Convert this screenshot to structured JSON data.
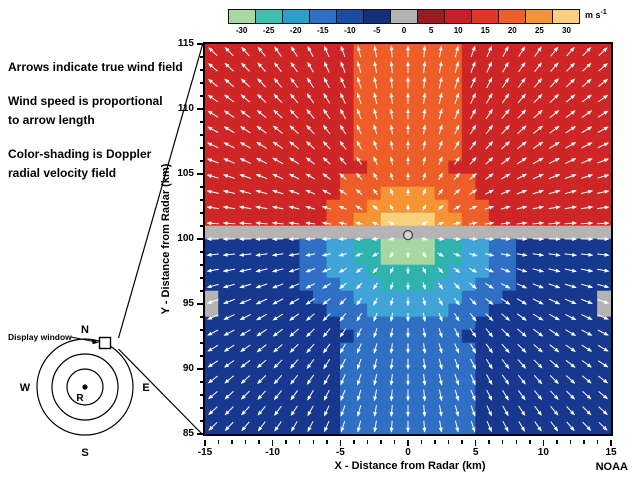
{
  "colorbar": {
    "values": [
      "-30",
      "-25",
      "-20",
      "-15",
      "-10",
      "-5",
      "0",
      "5",
      "10",
      "15",
      "20",
      "25",
      "30"
    ],
    "colors": [
      "#a8d8a2",
      "#3fbfae",
      "#2a9fc9",
      "#2e6fc4",
      "#1c4ba6",
      "#12307e",
      "#b4b4b4",
      "#9c1a20",
      "#c32127",
      "#de3627",
      "#ee5e28",
      "#f49434",
      "#f8d07e"
    ],
    "unit": "m s",
    "unit_exp": "-1"
  },
  "annotations": {
    "arrows": "Arrows indicate true wind field",
    "speed": "Wind speed is proportional\nto arrow length",
    "shading": "Color-shading is Doppler\nradial velocity field"
  },
  "inset": {
    "north": "N",
    "south": "S",
    "east": "E",
    "west": "W",
    "radar": "R",
    "window_label": "Display window"
  },
  "plot": {
    "x_title": "X - Distance from Radar (km)",
    "y_title": "Y - Distance from Radar (km)",
    "x_ticks": [
      -15,
      -10,
      -5,
      0,
      5,
      10,
      15
    ],
    "y_ticks": [
      85,
      90,
      95,
      100,
      105,
      110,
      115
    ],
    "x_range": [
      -15,
      15
    ],
    "y_range": [
      85,
      115
    ]
  },
  "credit": "NOAA",
  "chart_data": {
    "type": "heatmap",
    "title": "Doppler radial velocity field with true wind vectors",
    "x_range": [
      -15,
      15
    ],
    "y_range": [
      85,
      115
    ],
    "cell_km": 1,
    "units": "m s-1",
    "grid_palette": {
      "R": "#ce2626",
      "S": "#ee5e28",
      "O": "#f49434",
      "Y": "#f8d07e",
      "G": "#b4b4b4",
      "B": "#16388f",
      "b": "#2f6fc4",
      "C": "#41a4d8",
      "T": "#2fb3ae",
      "g": "#a8d8a2"
    },
    "value_map_ms": {
      "R": 12,
      "S": 17,
      "O": 22,
      "Y": 27,
      "G": 0,
      "B": -8,
      "b": -13,
      "C": -18,
      "T": -23,
      "g": -28
    },
    "rows": [
      "RRRRRRRRRRRSSSSSSSSRRRRRRRRRRR",
      "RRRRRRRRRRRSSSSSSSSRRRRRRRRRRR",
      "RRRRRRRRRRRSSSSSSSSRRRRRRRRRRR",
      "RRRRRRRRRRRSSSSSSSSRRRRRRRRRRR",
      "RRRRRRRRRRRSSSSSSSSRRRRRRRRRRR",
      "RRRRRRRRRRRSSSSSSSSRRRRRRRRRRR",
      "RRRRRRRRRRRSSSSSSSSRRRRRRRRRRR",
      "RRRRRRRRRRRSSSSSSSSRRRRRRRRRRR",
      "RRRRRRRRRRRSSSSSSSSRRRRRRRRRRR",
      "RRRRRRRRRRRRSSSSSSRRRRRRRRRRRR",
      "RRRRRRRRRRSSSSSSSSSSRRRRRRRRRR",
      "RRRRRRRRRRSSSOOOOSSSRRRRRRRRRR",
      "RRRRRRRRRSSSOOOOOOSSSRRRRRRRRR",
      "RRRRRRRRRSSOOYYYYOOSSRRRRRRRRR",
      "GGGGGGGGGGGGGGGGGGGGGGGGGGGGGG",
      "BBBBBBBbbCCTTggggTTCCbbBBBBBBB",
      "BBBBBBBbbCCTTggggTTCCbbBBBBBBB",
      "BBBBBBBbbCCCTTTTTTCCCbbBBBBBBB",
      "BBBBBBBbbbCCCTTTTCCCbbbBBBBBBB",
      "GBBBBBBBbbbCCCCCCCCbbbBBBBBBBG",
      "GBBBBBBBBbbbCCCCCCbbbBBBBBBBBG",
      "BBBBBBBBBBbbbbbbbbbbBBBBBBBBBB",
      "BBBBBBBBBBBbbbbbbbbBBBBBBBBBBB",
      "BBBBBBBBBBbbbbbbbbbbBBBBBBBBBB",
      "BBBBBBBBBBbbbbbbbbbbBBBBBBBBBB",
      "BBBBBBBBBBbbbbbbbbbbBBBBBBBBBB",
      "BBBBBBBBBBbbbbbbbbbbBBBBBBBBBB",
      "BBBBBBBBBBbbbbbbbbbbBBBBBBBBBB",
      "BBBBBBBBBBbbbbbbbbbbBBBBBBBBBB",
      "BBBBBBBBBBbbbbbbbbbbBBBBBBBBBB"
    ],
    "arrows": {
      "pattern": "radial-outward-divergence",
      "origin_x": 0,
      "origin_y": 100.3,
      "spacing_km": 1.2,
      "color": "#ffffff",
      "min_len_km": 0.35,
      "len_per_km": 0.045,
      "max_len_km": 0.85
    },
    "center_marker": {
      "x": 0,
      "y": 100.3
    }
  }
}
